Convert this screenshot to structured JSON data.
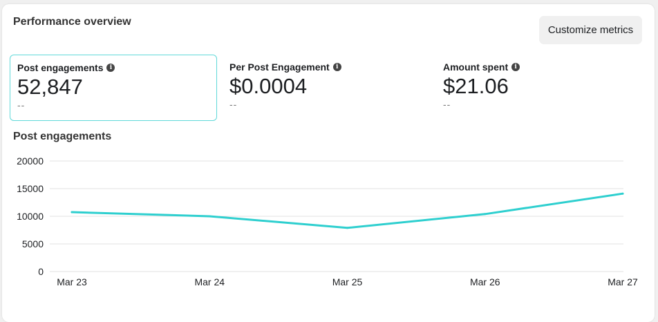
{
  "header": {
    "title": "Performance overview",
    "customize_label": "Customize metrics"
  },
  "metrics": [
    {
      "label": "Post engagements",
      "value": "52,847",
      "comparison": "--",
      "selected": true
    },
    {
      "label": "Per Post Engagement",
      "value": "$0.0004",
      "comparison": "--"
    },
    {
      "label": "Amount spent",
      "value": "$21.06",
      "comparison": "--"
    }
  ],
  "colors": {
    "line": "#2ecfcf",
    "grid": "#e2e2e2"
  },
  "chart_data": {
    "type": "line",
    "title": "Post engagements",
    "categories": [
      "Mar 23",
      "Mar 24",
      "Mar 25",
      "Mar 26",
      "Mar 27"
    ],
    "series": [
      {
        "name": "Post engagements",
        "values": [
          10750,
          10000,
          7900,
          10400,
          14100
        ]
      }
    ],
    "yticks": [
      "0",
      "5000",
      "10000",
      "15000",
      "20000"
    ],
    "ylim": [
      0,
      20000
    ],
    "grid": true
  }
}
